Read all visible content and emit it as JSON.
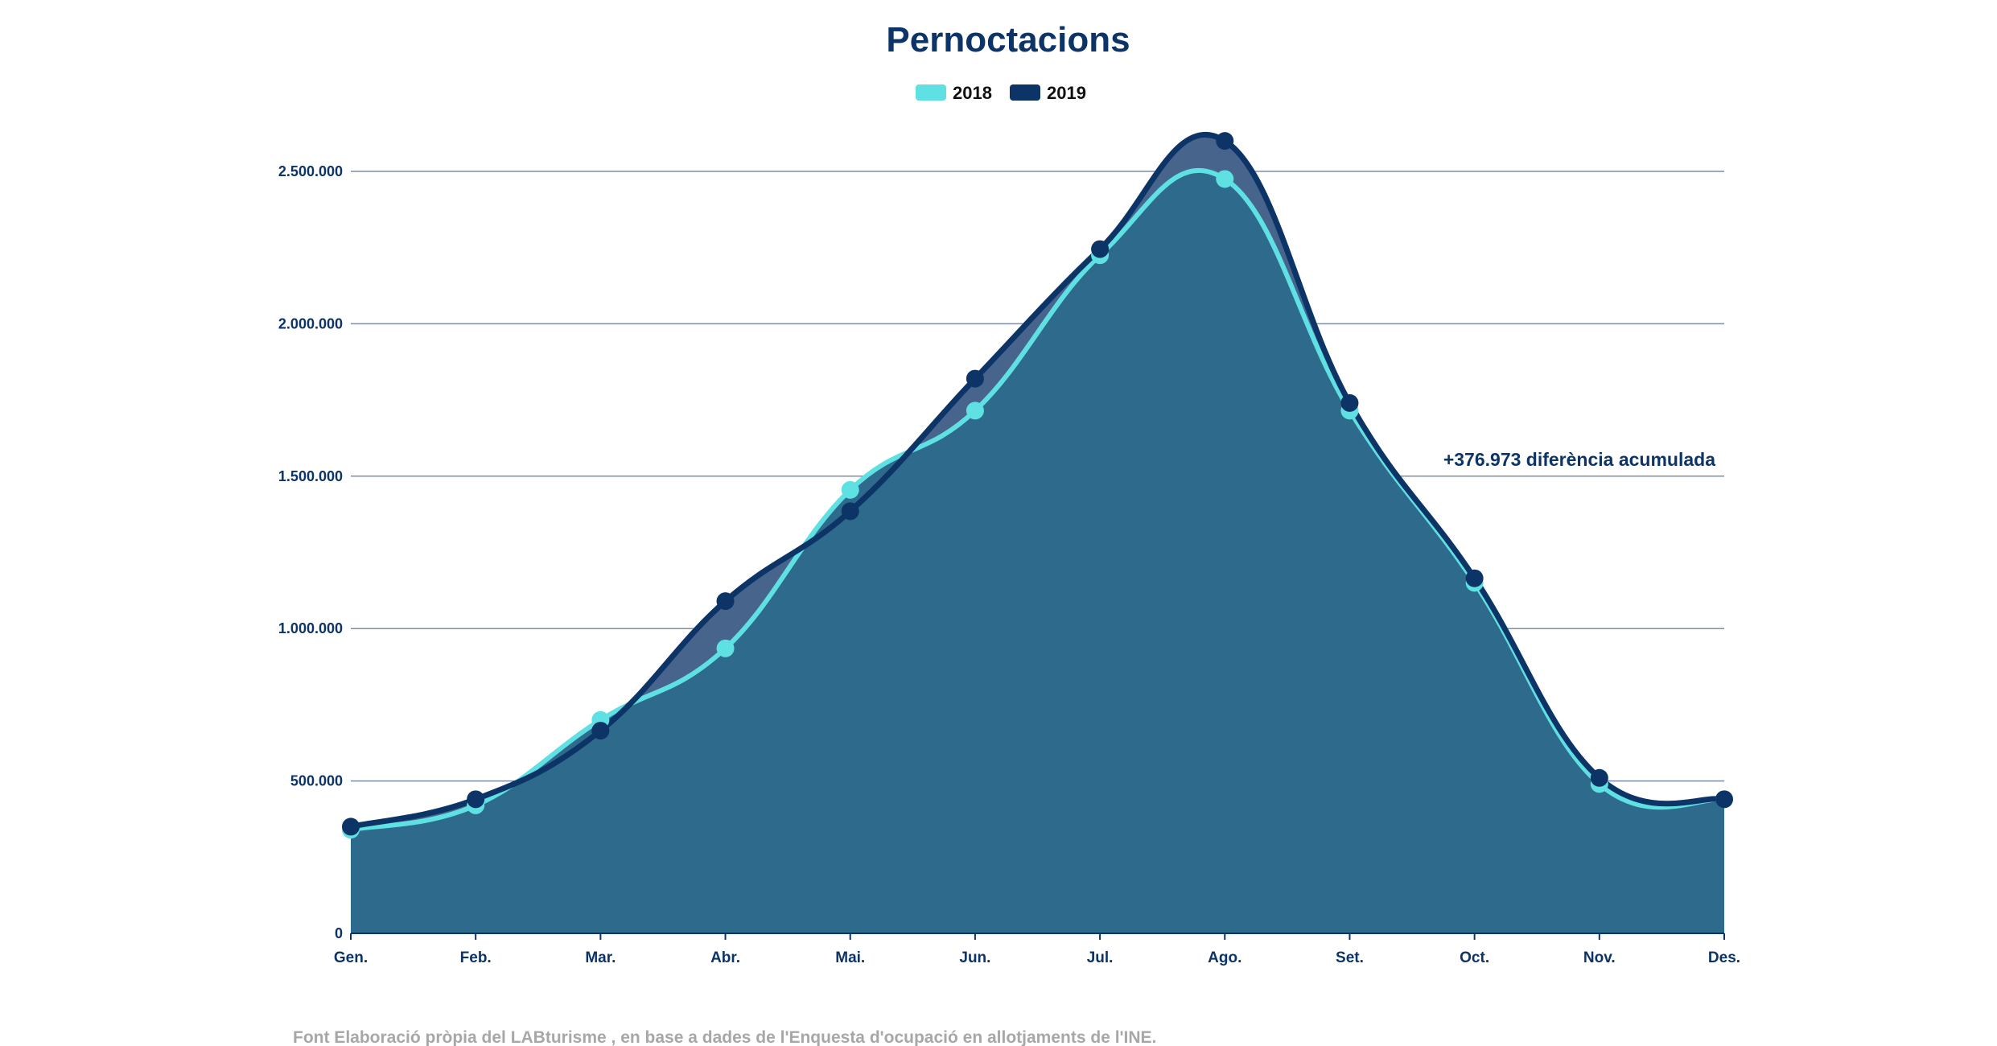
{
  "chart_data": {
    "type": "area",
    "title": "Pernoctacions",
    "categories": [
      "Gen.",
      "Feb.",
      "Mar.",
      "Abr.",
      "Mai.",
      "Jun.",
      "Jul.",
      "Ago.",
      "Set.",
      "Oct.",
      "Nov.",
      "Des."
    ],
    "series": [
      {
        "name": "2018",
        "values": [
          340000,
          420000,
          700000,
          935000,
          1455000,
          1715000,
          2225000,
          2475000,
          1715000,
          1150000,
          490000,
          440000
        ]
      },
      {
        "name": "2019",
        "values": [
          350000,
          440000,
          665000,
          1090000,
          1385000,
          1820000,
          2245000,
          2600000,
          1740000,
          1165000,
          510000,
          440000
        ]
      }
    ],
    "ylim": [
      0,
      2500000
    ],
    "yticks": [
      0,
      500000,
      1000000,
      1500000,
      2000000,
      2500000
    ],
    "ytick_labels": [
      "0",
      "500.000",
      "1.000.000",
      "1.500.000",
      "2.000.000",
      "2.500.000"
    ],
    "xlabel": "",
    "ylabel": "",
    "grid": true,
    "legend": "top",
    "annotation": "+376.973 diferència acumulada",
    "source": "Font Elaboració pròpia del LABturisme , en base a dades de l'Enquesta d'ocupació en allotjaments de l'INE."
  },
  "colors": {
    "series_2018": "#5fe0e3",
    "series_2019": "#0d3466",
    "fill_2018": "#2d6a8c",
    "fill_2019": "#46648c",
    "grid": "#7c8ea8",
    "axis": "#0d3466"
  }
}
